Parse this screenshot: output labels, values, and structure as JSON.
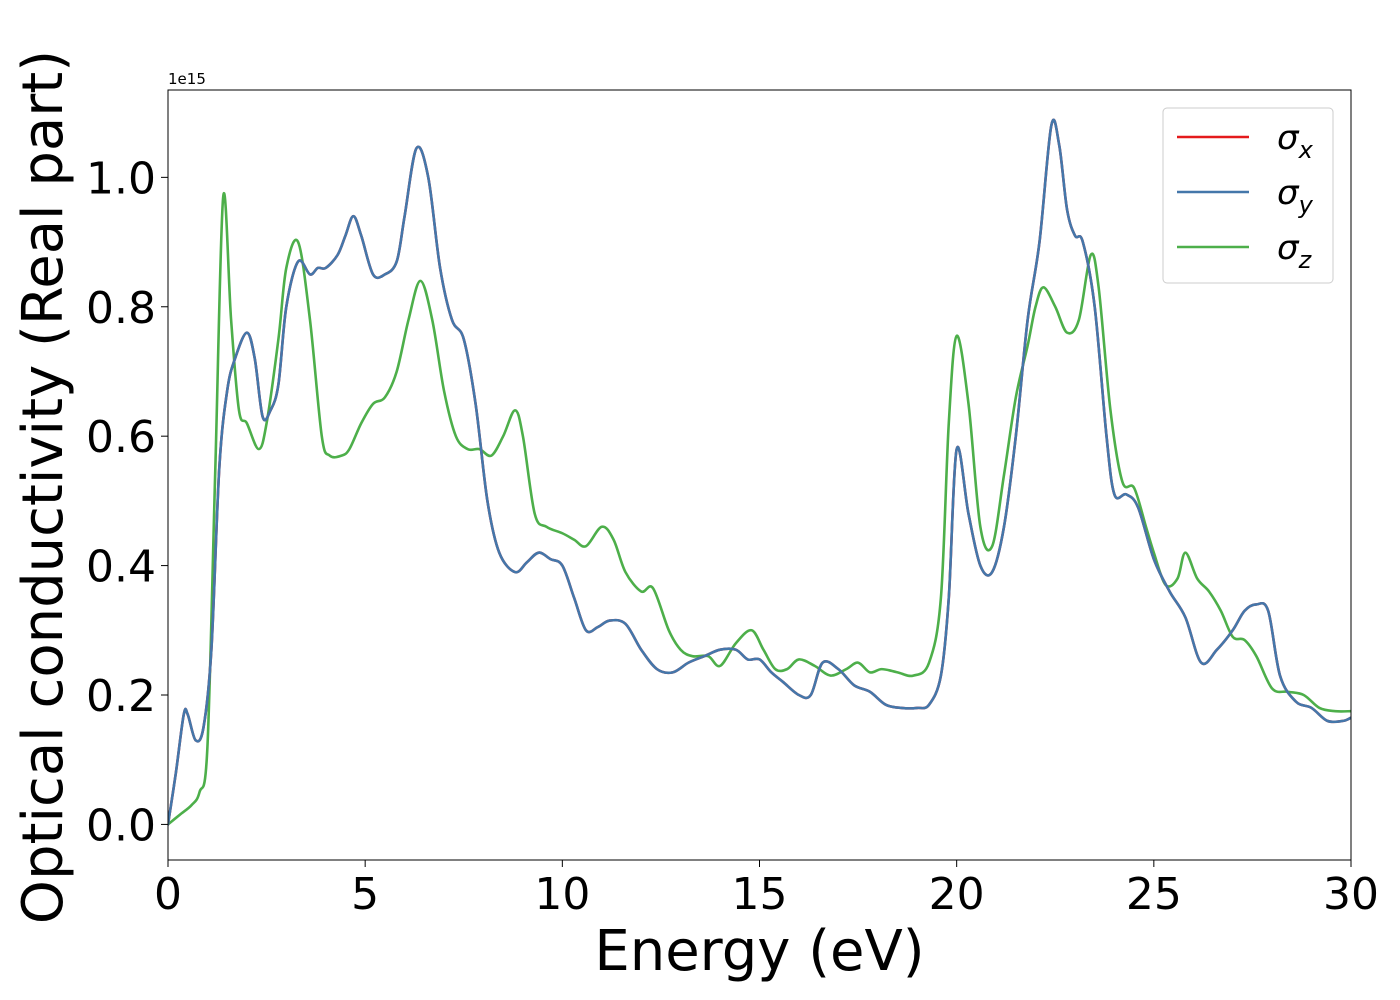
{
  "chart_data": {
    "type": "line",
    "xlabel": "Energy (eV)",
    "ylabel": "Optical conductivity (Real part)",
    "offset_text": "1e15",
    "xlim": [
      0,
      30
    ],
    "ylim": [
      -0.055,
      1.135
    ],
    "xticks": [
      0,
      5,
      10,
      15,
      20,
      25,
      30
    ],
    "yticks": [
      0.0,
      0.2,
      0.4,
      0.6,
      0.8,
      1.0
    ],
    "xtick_labels": [
      "0",
      "5",
      "10",
      "15",
      "20",
      "25",
      "30"
    ],
    "ytick_labels": [
      "0.0",
      "0.2",
      "0.4",
      "0.6",
      "0.8",
      "1.0"
    ],
    "legend_position": "upper right",
    "grid": false,
    "series": [
      {
        "name": "σx",
        "name_base": "σ",
        "name_sub": "x",
        "color": "#e41a1c",
        "x": [
          0,
          0.2,
          0.4,
          0.5,
          0.7,
          0.9,
          1.1,
          1.3,
          1.5,
          1.7,
          2.0,
          2.2,
          2.4,
          2.6,
          2.8,
          3.0,
          3.3,
          3.6,
          3.8,
          4.0,
          4.3,
          4.5,
          4.7,
          4.9,
          5.2,
          5.5,
          5.8,
          6.0,
          6.3,
          6.6,
          6.9,
          7.2,
          7.5,
          7.8,
          8.1,
          8.4,
          8.8,
          9.1,
          9.4,
          9.7,
          10.0,
          10.3,
          10.6,
          10.9,
          11.2,
          11.6,
          12.0,
          12.4,
          12.8,
          13.2,
          13.6,
          14.0,
          14.4,
          14.7,
          15.0,
          15.3,
          15.6,
          16.0,
          16.3,
          16.6,
          17.0,
          17.4,
          17.8,
          18.2,
          18.6,
          19.0,
          19.3,
          19.6,
          19.8,
          20.0,
          20.3,
          20.6,
          20.9,
          21.2,
          21.5,
          21.8,
          22.1,
          22.4,
          22.6,
          22.8,
          23.0,
          23.2,
          23.5,
          23.8,
          24.0,
          24.3,
          24.6,
          25.0,
          25.4,
          25.8,
          26.2,
          26.6,
          27.0,
          27.3,
          27.6,
          27.9,
          28.2,
          28.6,
          29.0,
          29.4,
          29.8,
          30.0
        ],
        "y": [
          0.0,
          0.08,
          0.17,
          0.17,
          0.13,
          0.15,
          0.27,
          0.55,
          0.67,
          0.72,
          0.76,
          0.72,
          0.63,
          0.64,
          0.68,
          0.8,
          0.87,
          0.85,
          0.86,
          0.86,
          0.88,
          0.91,
          0.94,
          0.91,
          0.85,
          0.85,
          0.87,
          0.94,
          1.045,
          1.0,
          0.86,
          0.78,
          0.75,
          0.65,
          0.5,
          0.42,
          0.39,
          0.405,
          0.42,
          0.41,
          0.4,
          0.35,
          0.3,
          0.305,
          0.315,
          0.31,
          0.27,
          0.24,
          0.235,
          0.25,
          0.26,
          0.27,
          0.27,
          0.255,
          0.255,
          0.235,
          0.22,
          0.2,
          0.2,
          0.25,
          0.24,
          0.215,
          0.205,
          0.185,
          0.18,
          0.18,
          0.185,
          0.23,
          0.35,
          0.58,
          0.48,
          0.4,
          0.39,
          0.46,
          0.6,
          0.78,
          0.9,
          1.08,
          1.05,
          0.95,
          0.91,
          0.9,
          0.8,
          0.6,
          0.51,
          0.51,
          0.49,
          0.41,
          0.36,
          0.32,
          0.25,
          0.27,
          0.3,
          0.33,
          0.34,
          0.33,
          0.23,
          0.19,
          0.18,
          0.16,
          0.16,
          0.165
        ]
      },
      {
        "name": "σy",
        "name_base": "σ",
        "name_sub": "y",
        "color": "#4477aa",
        "x": [
          0,
          0.2,
          0.4,
          0.5,
          0.7,
          0.9,
          1.1,
          1.3,
          1.5,
          1.7,
          2.0,
          2.2,
          2.4,
          2.6,
          2.8,
          3.0,
          3.3,
          3.6,
          3.8,
          4.0,
          4.3,
          4.5,
          4.7,
          4.9,
          5.2,
          5.5,
          5.8,
          6.0,
          6.3,
          6.6,
          6.9,
          7.2,
          7.5,
          7.8,
          8.1,
          8.4,
          8.8,
          9.1,
          9.4,
          9.7,
          10.0,
          10.3,
          10.6,
          10.9,
          11.2,
          11.6,
          12.0,
          12.4,
          12.8,
          13.2,
          13.6,
          14.0,
          14.4,
          14.7,
          15.0,
          15.3,
          15.6,
          16.0,
          16.3,
          16.6,
          17.0,
          17.4,
          17.8,
          18.2,
          18.6,
          19.0,
          19.3,
          19.6,
          19.8,
          20.0,
          20.3,
          20.6,
          20.9,
          21.2,
          21.5,
          21.8,
          22.1,
          22.4,
          22.6,
          22.8,
          23.0,
          23.2,
          23.5,
          23.8,
          24.0,
          24.3,
          24.6,
          25.0,
          25.4,
          25.8,
          26.2,
          26.6,
          27.0,
          27.3,
          27.6,
          27.9,
          28.2,
          28.6,
          29.0,
          29.4,
          29.8,
          30.0
        ],
        "y": [
          0.0,
          0.08,
          0.17,
          0.17,
          0.13,
          0.15,
          0.27,
          0.55,
          0.67,
          0.72,
          0.76,
          0.72,
          0.63,
          0.64,
          0.68,
          0.8,
          0.87,
          0.85,
          0.86,
          0.86,
          0.88,
          0.91,
          0.94,
          0.91,
          0.85,
          0.85,
          0.87,
          0.94,
          1.045,
          1.0,
          0.86,
          0.78,
          0.75,
          0.65,
          0.5,
          0.42,
          0.39,
          0.405,
          0.42,
          0.41,
          0.4,
          0.35,
          0.3,
          0.305,
          0.315,
          0.31,
          0.27,
          0.24,
          0.235,
          0.25,
          0.26,
          0.27,
          0.27,
          0.255,
          0.255,
          0.235,
          0.22,
          0.2,
          0.2,
          0.25,
          0.24,
          0.215,
          0.205,
          0.185,
          0.18,
          0.18,
          0.185,
          0.23,
          0.35,
          0.58,
          0.48,
          0.4,
          0.39,
          0.46,
          0.6,
          0.78,
          0.9,
          1.08,
          1.05,
          0.95,
          0.91,
          0.9,
          0.8,
          0.6,
          0.51,
          0.51,
          0.49,
          0.41,
          0.36,
          0.32,
          0.25,
          0.27,
          0.3,
          0.33,
          0.34,
          0.33,
          0.23,
          0.19,
          0.18,
          0.16,
          0.16,
          0.165
        ]
      },
      {
        "name": "σz",
        "name_base": "σ",
        "name_sub": "z",
        "color": "#4daf4a",
        "x": [
          0,
          0.3,
          0.6,
          0.8,
          1.0,
          1.2,
          1.4,
          1.6,
          1.8,
          2.0,
          2.3,
          2.5,
          2.8,
          3.0,
          3.3,
          3.6,
          3.9,
          4.1,
          4.4,
          4.6,
          4.9,
          5.2,
          5.5,
          5.8,
          6.1,
          6.4,
          6.7,
          7.0,
          7.3,
          7.6,
          7.9,
          8.2,
          8.5,
          8.8,
          9.0,
          9.3,
          9.6,
          10.0,
          10.3,
          10.6,
          11.0,
          11.3,
          11.6,
          12.0,
          12.3,
          12.7,
          13.0,
          13.3,
          13.7,
          14.0,
          14.4,
          14.8,
          15.1,
          15.4,
          15.7,
          16.0,
          16.4,
          16.8,
          17.2,
          17.5,
          17.8,
          18.1,
          18.5,
          18.9,
          19.3,
          19.6,
          19.8,
          20.0,
          20.3,
          20.6,
          20.9,
          21.2,
          21.5,
          21.8,
          22.0,
          22.2,
          22.5,
          22.8,
          23.1,
          23.4,
          23.6,
          23.9,
          24.2,
          24.5,
          24.8,
          25.0,
          25.3,
          25.6,
          25.8,
          26.1,
          26.4,
          26.7,
          27.0,
          27.3,
          27.6,
          28.0,
          28.4,
          28.8,
          29.2,
          29.6,
          30.0
        ],
        "y": [
          0.0,
          0.015,
          0.03,
          0.05,
          0.12,
          0.55,
          0.97,
          0.78,
          0.64,
          0.62,
          0.58,
          0.62,
          0.75,
          0.86,
          0.9,
          0.78,
          0.6,
          0.57,
          0.57,
          0.58,
          0.62,
          0.65,
          0.66,
          0.7,
          0.78,
          0.84,
          0.78,
          0.67,
          0.6,
          0.58,
          0.58,
          0.57,
          0.6,
          0.64,
          0.6,
          0.48,
          0.46,
          0.45,
          0.44,
          0.43,
          0.46,
          0.44,
          0.39,
          0.36,
          0.365,
          0.3,
          0.27,
          0.26,
          0.26,
          0.245,
          0.28,
          0.3,
          0.27,
          0.24,
          0.24,
          0.255,
          0.245,
          0.23,
          0.24,
          0.25,
          0.235,
          0.24,
          0.235,
          0.23,
          0.25,
          0.35,
          0.62,
          0.755,
          0.65,
          0.46,
          0.43,
          0.54,
          0.66,
          0.74,
          0.8,
          0.83,
          0.8,
          0.76,
          0.78,
          0.88,
          0.83,
          0.64,
          0.53,
          0.52,
          0.46,
          0.42,
          0.37,
          0.38,
          0.42,
          0.38,
          0.36,
          0.33,
          0.29,
          0.285,
          0.26,
          0.21,
          0.205,
          0.2,
          0.18,
          0.175,
          0.175
        ]
      }
    ]
  }
}
